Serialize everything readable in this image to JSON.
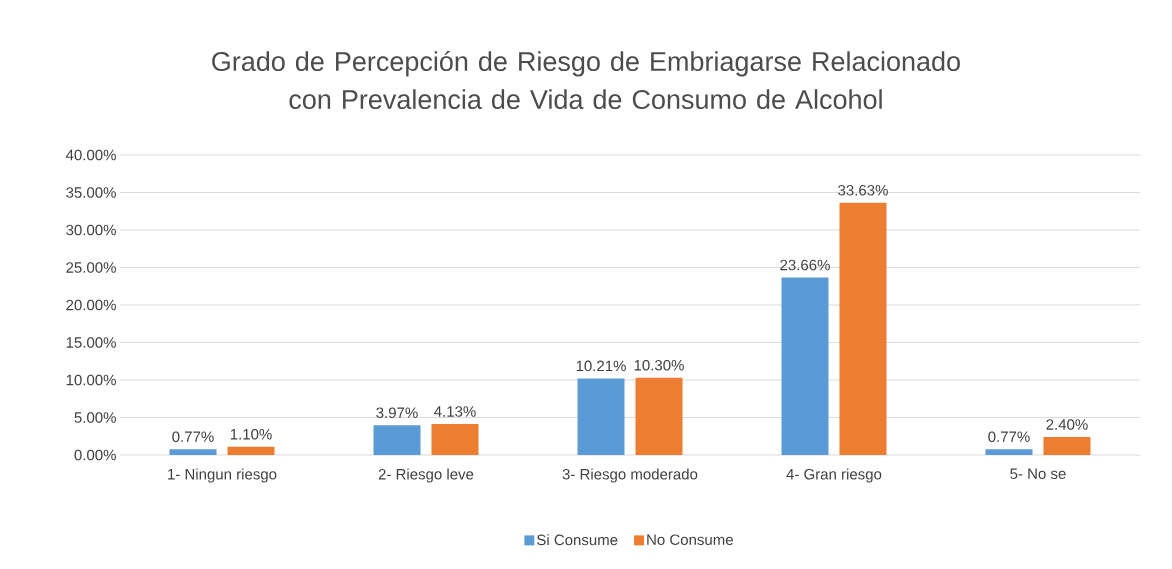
{
  "chart_data": {
    "type": "bar",
    "title": "Grado de Percepción de Riesgo de Embriagarse Relacionado con Prevalencia de Vida de Consumo de Alcohol",
    "categories": [
      "1- Ningun riesgo",
      "2- Riesgo leve",
      "3- Riesgo moderado",
      "4- Gran riesgo",
      "5- No se"
    ],
    "series": [
      {
        "name": "Si Consume",
        "color": "#5b9bd5",
        "values": [
          0.77,
          3.97,
          10.21,
          23.66,
          0.77
        ],
        "value_labels": [
          "0.77%",
          "3.97%",
          "10.21%",
          "23.66%",
          "0.77%"
        ]
      },
      {
        "name": "No Consume",
        "color": "#ed7d31",
        "values": [
          1.1,
          4.13,
          10.3,
          33.63,
          2.4
        ],
        "value_labels": [
          "1.10%",
          "4.13%",
          "10.30%",
          "33.63%",
          "2.40%"
        ]
      }
    ],
    "ylim": [
      0,
      40
    ],
    "yticks": [
      {
        "value": 0,
        "label": "0.00%"
      },
      {
        "value": 5,
        "label": "5.00%"
      },
      {
        "value": 10,
        "label": "10.00%"
      },
      {
        "value": 15,
        "label": "15.00%"
      },
      {
        "value": 20,
        "label": "20.00%"
      },
      {
        "value": 25,
        "label": "25.00%"
      },
      {
        "value": 30,
        "label": "30.00%"
      },
      {
        "value": 35,
        "label": "35.00%"
      },
      {
        "value": 40,
        "label": "40.00%"
      }
    ],
    "grid": "y",
    "legend": "bottom"
  }
}
